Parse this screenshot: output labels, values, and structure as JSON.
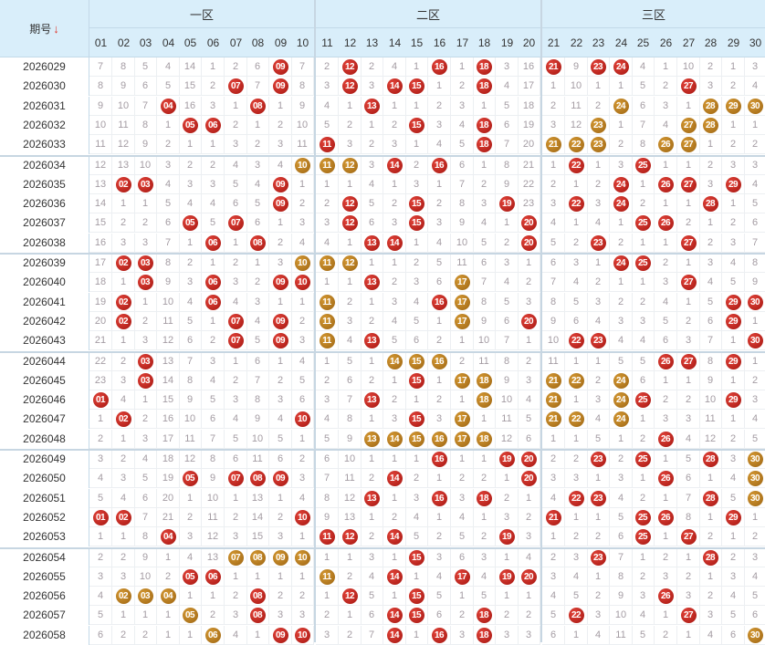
{
  "header": {
    "issue_label": "期号",
    "sort_icon": "arrow-down-icon",
    "zones": [
      "一区",
      "二区",
      "三区"
    ],
    "numbers": [
      "01",
      "02",
      "03",
      "04",
      "05",
      "06",
      "07",
      "08",
      "09",
      "10",
      "11",
      "12",
      "13",
      "14",
      "15",
      "16",
      "17",
      "18",
      "19",
      "20",
      "21",
      "22",
      "23",
      "24",
      "25",
      "26",
      "27",
      "28",
      "29",
      "30"
    ]
  },
  "rows": [
    {
      "issue": "2026029",
      "cells": [
        "7",
        "8",
        "5",
        "4",
        "14",
        "1",
        "2",
        "6",
        "r:09",
        "7",
        "2",
        "r:12",
        "2",
        "4",
        "1",
        "r:16",
        "1",
        "r:18",
        "3",
        "16",
        "r:21",
        "9",
        "r:23",
        "r:24",
        "4",
        "1",
        "10",
        "2",
        "1",
        "3"
      ]
    },
    {
      "issue": "2026030",
      "cells": [
        "8",
        "9",
        "6",
        "5",
        "15",
        "2",
        "r:07",
        "7",
        "r:09",
        "8",
        "3",
        "r:12",
        "3",
        "r:14",
        "r:15",
        "1",
        "2",
        "r:18",
        "4",
        "17",
        "1",
        "10",
        "1",
        "1",
        "5",
        "2",
        "r:27",
        "3",
        "2",
        "4"
      ]
    },
    {
      "issue": "2026031",
      "cells": [
        "9",
        "10",
        "7",
        "r:04",
        "16",
        "3",
        "1",
        "r:08",
        "1",
        "9",
        "4",
        "1",
        "r:13",
        "1",
        "1",
        "2",
        "3",
        "1",
        "5",
        "18",
        "2",
        "11",
        "2",
        "o:24",
        "6",
        "3",
        "1",
        "o:28",
        "o:29",
        "o:30"
      ]
    },
    {
      "issue": "2026032",
      "cells": [
        "10",
        "11",
        "8",
        "1",
        "r:05",
        "r:06",
        "2",
        "1",
        "2",
        "10",
        "5",
        "2",
        "1",
        "2",
        "r:15",
        "3",
        "4",
        "r:18",
        "6",
        "19",
        "3",
        "12",
        "o:23",
        "1",
        "7",
        "4",
        "o:27",
        "o:28",
        "1",
        "1"
      ]
    },
    {
      "issue": "2026033",
      "cells": [
        "11",
        "12",
        "9",
        "2",
        "1",
        "1",
        "3",
        "2",
        "3",
        "11",
        "r:11",
        "3",
        "2",
        "3",
        "1",
        "4",
        "5",
        "r:18",
        "7",
        "20",
        "o:21",
        "o:22",
        "o:23",
        "2",
        "8",
        "o:26",
        "o:27",
        "1",
        "2",
        "2"
      ]
    },
    {
      "issue": "2026034",
      "cells": [
        "12",
        "13",
        "10",
        "3",
        "2",
        "2",
        "4",
        "3",
        "4",
        "o:10",
        "o:11",
        "o:12",
        "3",
        "r:14",
        "2",
        "r:16",
        "6",
        "1",
        "8",
        "21",
        "1",
        "r:22",
        "1",
        "3",
        "r:25",
        "1",
        "1",
        "2",
        "3",
        "3"
      ]
    },
    {
      "issue": "2026035",
      "cells": [
        "13",
        "r:02",
        "r:03",
        "4",
        "3",
        "3",
        "5",
        "4",
        "r:09",
        "1",
        "1",
        "1",
        "4",
        "1",
        "3",
        "1",
        "7",
        "2",
        "9",
        "22",
        "2",
        "1",
        "2",
        "r:24",
        "1",
        "r:26",
        "r:27",
        "3",
        "r:29",
        "4"
      ]
    },
    {
      "issue": "2026036",
      "cells": [
        "14",
        "1",
        "1",
        "5",
        "4",
        "4",
        "6",
        "5",
        "r:09",
        "2",
        "2",
        "r:12",
        "5",
        "2",
        "r:15",
        "2",
        "8",
        "3",
        "r:19",
        "23",
        "3",
        "r:22",
        "3",
        "r:24",
        "2",
        "1",
        "1",
        "r:28",
        "1",
        "5"
      ]
    },
    {
      "issue": "2026037",
      "cells": [
        "15",
        "2",
        "2",
        "6",
        "r:05",
        "5",
        "r:07",
        "6",
        "1",
        "3",
        "3",
        "r:12",
        "6",
        "3",
        "r:15",
        "3",
        "9",
        "4",
        "1",
        "r:20",
        "4",
        "1",
        "4",
        "1",
        "r:25",
        "r:26",
        "2",
        "1",
        "2",
        "6"
      ]
    },
    {
      "issue": "2026038",
      "cells": [
        "16",
        "3",
        "3",
        "7",
        "1",
        "r:06",
        "1",
        "r:08",
        "2",
        "4",
        "4",
        "1",
        "r:13",
        "r:14",
        "1",
        "4",
        "10",
        "5",
        "2",
        "r:20",
        "5",
        "2",
        "r:23",
        "2",
        "1",
        "1",
        "r:27",
        "2",
        "3",
        "7"
      ]
    },
    {
      "issue": "2026039",
      "cells": [
        "17",
        "r:02",
        "r:03",
        "8",
        "2",
        "1",
        "2",
        "1",
        "3",
        "o:10",
        "o:11",
        "o:12",
        "1",
        "1",
        "2",
        "5",
        "11",
        "6",
        "3",
        "1",
        "6",
        "3",
        "1",
        "r:24",
        "r:25",
        "2",
        "1",
        "3",
        "4",
        "8"
      ]
    },
    {
      "issue": "2026040",
      "cells": [
        "18",
        "1",
        "r:03",
        "9",
        "3",
        "r:06",
        "3",
        "2",
        "r:09",
        "r:10",
        "1",
        "1",
        "r:13",
        "2",
        "3",
        "6",
        "o:17",
        "7",
        "4",
        "2",
        "7",
        "4",
        "2",
        "1",
        "1",
        "3",
        "r:27",
        "4",
        "5",
        "9"
      ]
    },
    {
      "issue": "2026041",
      "cells": [
        "19",
        "r:02",
        "1",
        "10",
        "4",
        "r:06",
        "4",
        "3",
        "1",
        "1",
        "o:11",
        "2",
        "1",
        "3",
        "4",
        "r:16",
        "o:17",
        "8",
        "5",
        "3",
        "8",
        "5",
        "3",
        "2",
        "2",
        "4",
        "1",
        "5",
        "r:29",
        "r:30"
      ]
    },
    {
      "issue": "2026042",
      "cells": [
        "20",
        "r:02",
        "2",
        "11",
        "5",
        "1",
        "r:07",
        "4",
        "r:09",
        "2",
        "o:11",
        "3",
        "2",
        "4",
        "5",
        "1",
        "o:17",
        "9",
        "6",
        "r:20",
        "9",
        "6",
        "4",
        "3",
        "3",
        "5",
        "2",
        "6",
        "r:29",
        "1"
      ]
    },
    {
      "issue": "2026043",
      "cells": [
        "21",
        "1",
        "3",
        "12",
        "6",
        "2",
        "r:07",
        "5",
        "r:09",
        "3",
        "o:11",
        "4",
        "r:13",
        "5",
        "6",
        "2",
        "1",
        "10",
        "7",
        "1",
        "10",
        "r:22",
        "r:23",
        "4",
        "4",
        "6",
        "3",
        "7",
        "1",
        "r:30"
      ]
    },
    {
      "issue": "2026044",
      "cells": [
        "22",
        "2",
        "r:03",
        "13",
        "7",
        "3",
        "1",
        "6",
        "1",
        "4",
        "1",
        "5",
        "1",
        "o:14",
        "o:15",
        "o:16",
        "2",
        "11",
        "8",
        "2",
        "11",
        "1",
        "1",
        "5",
        "5",
        "r:26",
        "r:27",
        "8",
        "r:29",
        "1"
      ]
    },
    {
      "issue": "2026045",
      "cells": [
        "23",
        "3",
        "r:03",
        "14",
        "8",
        "4",
        "2",
        "7",
        "2",
        "5",
        "2",
        "6",
        "2",
        "1",
        "r:15",
        "1",
        "o:17",
        "o:18",
        "9",
        "3",
        "o:21",
        "o:22",
        "2",
        "o:24",
        "6",
        "1",
        "1",
        "9",
        "1",
        "2"
      ]
    },
    {
      "issue": "2026046",
      "cells": [
        "r:01",
        "4",
        "1",
        "15",
        "9",
        "5",
        "3",
        "8",
        "3",
        "6",
        "3",
        "7",
        "r:13",
        "2",
        "1",
        "2",
        "1",
        "o:18",
        "10",
        "4",
        "o:21",
        "1",
        "3",
        "o:24",
        "r:25",
        "2",
        "2",
        "10",
        "r:29",
        "3"
      ]
    },
    {
      "issue": "2026047",
      "cells": [
        "1",
        "r:02",
        "2",
        "16",
        "10",
        "6",
        "4",
        "9",
        "4",
        "r:10",
        "4",
        "8",
        "1",
        "3",
        "r:15",
        "3",
        "o:17",
        "1",
        "11",
        "5",
        "o:21",
        "o:22",
        "4",
        "o:24",
        "1",
        "3",
        "3",
        "11",
        "1",
        "4"
      ]
    },
    {
      "issue": "2026048",
      "cells": [
        "2",
        "1",
        "3",
        "17",
        "11",
        "7",
        "5",
        "10",
        "5",
        "1",
        "5",
        "9",
        "o:13",
        "o:14",
        "o:15",
        "o:16",
        "o:17",
        "o:18",
        "12",
        "6",
        "1",
        "1",
        "5",
        "1",
        "2",
        "r:26",
        "4",
        "12",
        "2",
        "5"
      ]
    },
    {
      "issue": "2026049",
      "cells": [
        "3",
        "2",
        "4",
        "18",
        "12",
        "8",
        "6",
        "11",
        "6",
        "2",
        "6",
        "10",
        "1",
        "1",
        "1",
        "r:16",
        "1",
        "1",
        "r:19",
        "r:20",
        "2",
        "2",
        "r:23",
        "2",
        "r:25",
        "1",
        "5",
        "r:28",
        "3",
        "o:30"
      ]
    },
    {
      "issue": "2026050",
      "cells": [
        "4",
        "3",
        "5",
        "19",
        "r:05",
        "9",
        "r:07",
        "r:08",
        "r:09",
        "3",
        "7",
        "11",
        "2",
        "r:14",
        "2",
        "1",
        "2",
        "2",
        "1",
        "r:20",
        "3",
        "3",
        "1",
        "3",
        "1",
        "r:26",
        "6",
        "1",
        "4",
        "o:30"
      ]
    },
    {
      "issue": "2026051",
      "cells": [
        "5",
        "4",
        "6",
        "20",
        "1",
        "10",
        "1",
        "13",
        "1",
        "4",
        "8",
        "12",
        "r:13",
        "1",
        "3",
        "r:16",
        "3",
        "r:18",
        "2",
        "1",
        "4",
        "r:22",
        "r:23",
        "4",
        "2",
        "1",
        "7",
        "r:28",
        "5",
        "o:30"
      ]
    },
    {
      "issue": "2026052",
      "cells": [
        "r:01",
        "r:02",
        "7",
        "21",
        "2",
        "11",
        "2",
        "14",
        "2",
        "r:10",
        "9",
        "13",
        "1",
        "2",
        "4",
        "1",
        "4",
        "1",
        "3",
        "2",
        "r:21",
        "1",
        "1",
        "5",
        "r:25",
        "r:26",
        "8",
        "1",
        "r:29",
        "1"
      ]
    },
    {
      "issue": "2026053",
      "cells": [
        "1",
        "1",
        "8",
        "r:04",
        "3",
        "12",
        "3",
        "15",
        "3",
        "1",
        "r:11",
        "r:12",
        "2",
        "r:14",
        "5",
        "2",
        "5",
        "2",
        "r:19",
        "3",
        "1",
        "2",
        "2",
        "6",
        "r:25",
        "1",
        "r:27",
        "2",
        "1",
        "2"
      ]
    },
    {
      "issue": "2026054",
      "cells": [
        "2",
        "2",
        "9",
        "1",
        "4",
        "13",
        "o:07",
        "o:08",
        "o:09",
        "o:10",
        "1",
        "1",
        "3",
        "1",
        "r:15",
        "3",
        "6",
        "3",
        "1",
        "4",
        "2",
        "3",
        "r:23",
        "7",
        "1",
        "2",
        "1",
        "r:28",
        "2",
        "3"
      ]
    },
    {
      "issue": "2026055",
      "cells": [
        "3",
        "3",
        "10",
        "2",
        "r:05",
        "r:06",
        "1",
        "1",
        "1",
        "1",
        "o:11",
        "2",
        "4",
        "r:14",
        "1",
        "4",
        "r:17",
        "4",
        "r:19",
        "r:20",
        "3",
        "4",
        "1",
        "8",
        "2",
        "3",
        "2",
        "1",
        "3",
        "4"
      ]
    },
    {
      "issue": "2026056",
      "cells": [
        "4",
        "o:02",
        "o:03",
        "o:04",
        "1",
        "1",
        "2",
        "r:08",
        "2",
        "2",
        "1",
        "r:12",
        "5",
        "1",
        "r:15",
        "5",
        "1",
        "5",
        "1",
        "1",
        "4",
        "5",
        "2",
        "9",
        "3",
        "r:26",
        "3",
        "2",
        "4",
        "5"
      ]
    },
    {
      "issue": "2026057",
      "cells": [
        "5",
        "1",
        "1",
        "1",
        "o:05",
        "2",
        "3",
        "r:08",
        "3",
        "3",
        "2",
        "1",
        "6",
        "r:14",
        "r:15",
        "6",
        "2",
        "r:18",
        "2",
        "2",
        "5",
        "r:22",
        "3",
        "10",
        "4",
        "1",
        "r:27",
        "3",
        "5",
        "6"
      ]
    },
    {
      "issue": "2026058",
      "cells": [
        "6",
        "2",
        "2",
        "1",
        "1",
        "o:06",
        "4",
        "1",
        "r:09",
        "r:10",
        "3",
        "2",
        "7",
        "r:14",
        "1",
        "r:16",
        "3",
        "r:18",
        "3",
        "3",
        "6",
        "1",
        "4",
        "11",
        "5",
        "2",
        "1",
        "4",
        "6",
        "o:30"
      ]
    }
  ]
}
